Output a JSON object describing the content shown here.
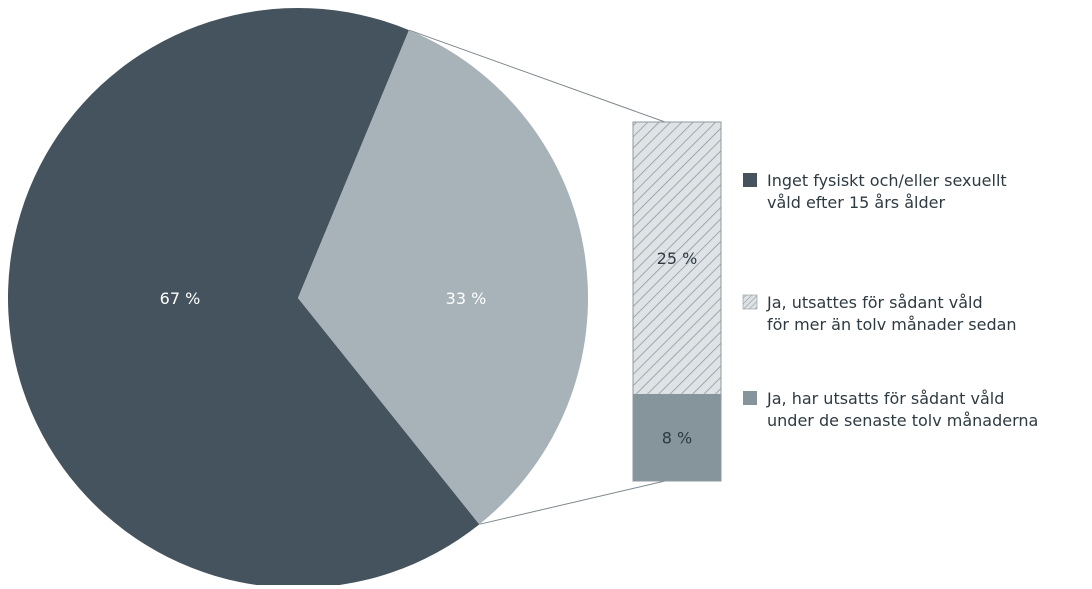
{
  "chart_data": {
    "type": "pie",
    "title": "",
    "slices": [
      {
        "label": "Inget fysiskt och/eller sexuellt våld efter 15 års ålder",
        "value": 67,
        "value_label": "67 %",
        "color": "#44535d"
      },
      {
        "label": "Ja",
        "value": 33,
        "value_label": "33 %",
        "color": "#a7b2b9"
      }
    ],
    "breakdown": {
      "parent_slice": "Ja",
      "type": "stacked-bar",
      "segments": [
        {
          "label": "Ja, utsattes för sådant våld för mer än tolv månader sedan",
          "value": 25,
          "value_label": "25 %",
          "pattern": "diagonal-hatch",
          "color": "#dfe3e6",
          "hatch_color": "#8d999f"
        },
        {
          "label": "Ja, har utsatts för sådant våld under de senaste tolv månaderna",
          "value": 8,
          "value_label": "8 %",
          "color": "#86949c"
        }
      ]
    },
    "legend": {
      "placement": "right",
      "entries": [
        {
          "lines": [
            "Inget fysiskt och/eller sexuellt",
            "våld efter 15 års ålder"
          ],
          "swatch": "solid",
          "color": "#44535d"
        },
        {
          "lines": [
            "Ja, utsattes för sådant våld",
            "för mer än tolv månader sedan"
          ],
          "swatch": "hatch",
          "color": "#dfe3e6",
          "hatch_color": "#8d999f"
        },
        {
          "lines": [
            "Ja, har utsatts för sådant våld",
            "under de senaste tolv månaderna"
          ],
          "swatch": "solid",
          "color": "#86949c"
        }
      ]
    }
  }
}
